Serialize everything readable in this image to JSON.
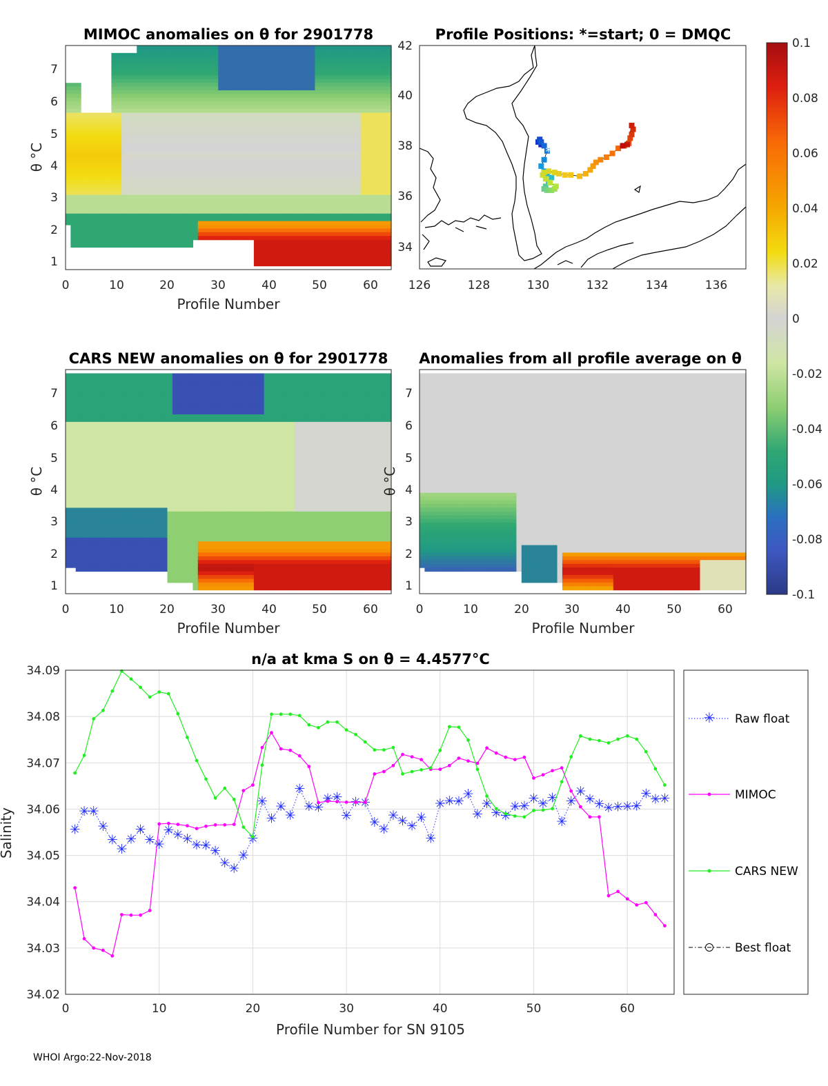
{
  "footer": "WHOI Argo:22-Nov-2018",
  "colors": {
    "raw_float": "#1f2bff",
    "mimoc": "#ff00ff",
    "cars_new": "#22ee22",
    "best_float": "#000000",
    "land": "#000000",
    "grid": "#dcdcdc"
  },
  "panels": {
    "mimoc": {
      "title": "MIMOC anomalies on θ  for 2901778",
      "xlabel": "Profile Number",
      "ylabel": "θ °C",
      "xticks": [
        "0",
        "10",
        "20",
        "30",
        "40",
        "50",
        "60"
      ],
      "yticks": [
        "1",
        "2",
        "3",
        "4",
        "5",
        "6",
        "7"
      ]
    },
    "positions": {
      "title": "Profile Positions: *=start; 0 = DMQC",
      "xticks": [
        "126",
        "128",
        "130",
        "132",
        "134",
        "136"
      ],
      "yticks": [
        "34",
        "36",
        "38",
        "40",
        "42"
      ]
    },
    "cars": {
      "title": "CARS NEW anomalies on θ for 2901778",
      "xlabel": "Profile Number",
      "ylabel": "θ °C",
      "xticks": [
        "0",
        "10",
        "20",
        "30",
        "40",
        "50",
        "60"
      ],
      "yticks": [
        "1",
        "2",
        "3",
        "4",
        "5",
        "6",
        "7"
      ]
    },
    "average": {
      "title": "Anomalies from all profile average on θ",
      "xlabel": "Profile Number",
      "ylabel": "θ °C",
      "xticks": [
        "0",
        "10",
        "20",
        "30",
        "40",
        "50",
        "60"
      ],
      "yticks": [
        "1",
        "2",
        "3",
        "4",
        "5",
        "6",
        "7"
      ]
    },
    "colorbar": {
      "ticks": [
        "0.1",
        "0.08",
        "0.06",
        "0.04",
        "0.02",
        "0",
        "-0.02",
        "-0.04",
        "-0.06",
        "-0.08",
        "-0.1"
      ]
    }
  },
  "chart_data": [
    {
      "type": "heatmap",
      "id": "mimoc_anomalies",
      "title": "MIMOC anomalies on θ  for 2901778",
      "xlabel": "Profile Number",
      "ylabel": "θ °C",
      "xlim": [
        0,
        64
      ],
      "ylim": [
        0.7,
        7.6
      ],
      "clim": [
        -0.1,
        0.1
      ]
    },
    {
      "type": "scatter",
      "id": "profile_positions",
      "title": "Profile Positions: *=start; 0 = DMQC",
      "xlim": [
        126,
        137
      ],
      "ylim": [
        33.2,
        42
      ],
      "start": [
        130.35,
        37.85
      ],
      "lon": [
        130.1,
        130.0,
        130.05,
        130.1,
        130.2,
        130.3,
        130.2,
        130.1,
        130.2,
        130.3,
        130.45,
        130.35,
        130.25,
        130.2,
        130.3,
        130.45,
        130.55,
        130.6,
        130.4,
        130.25,
        130.15,
        130.2,
        130.35,
        130.55,
        130.7,
        130.9,
        131.1,
        131.4,
        131.6,
        131.75,
        131.85,
        131.95,
        132.1,
        132.3,
        132.5,
        132.7,
        132.9,
        133.05,
        133.1,
        133.15,
        133.2,
        133.15,
        133.0,
        132.85
      ],
      "lat": [
        38.1,
        38.2,
        38.3,
        38.2,
        38.05,
        37.85,
        37.5,
        37.25,
        37.05,
        36.95,
        36.8,
        36.6,
        36.45,
        36.35,
        36.3,
        36.3,
        36.35,
        36.45,
        36.6,
        36.75,
        36.9,
        37.0,
        37.05,
        37.0,
        36.95,
        36.9,
        36.9,
        36.85,
        36.95,
        37.1,
        37.25,
        37.4,
        37.5,
        37.6,
        37.75,
        37.95,
        38.05,
        38.15,
        38.35,
        38.5,
        38.7,
        38.85,
        38.1,
        38.05
      ],
      "clim": [
        1,
        64
      ]
    },
    {
      "type": "heatmap",
      "id": "cars_anomalies",
      "title": "CARS NEW anomalies on θ for 2901778",
      "xlabel": "Profile Number",
      "ylabel": "θ °C",
      "xlim": [
        0,
        64
      ],
      "ylim": [
        0.7,
        7.6
      ],
      "clim": [
        -0.1,
        0.1
      ]
    },
    {
      "type": "heatmap",
      "id": "average_anomalies",
      "title": "Anomalies from all profile average on θ",
      "xlabel": "Profile Number",
      "ylabel": "θ °C",
      "xlim": [
        0,
        64
      ],
      "ylim": [
        0.7,
        7.6
      ],
      "clim": [
        -0.1,
        0.1
      ]
    },
    {
      "type": "line",
      "id": "salinity_on_theta",
      "title": "n/a at kma S on θ = 4.4577°C",
      "xlabel": "Profile Number for SN 9105",
      "ylabel": "Salinity",
      "xlim": [
        0,
        65
      ],
      "ylim": [
        34.02,
        34.09
      ],
      "xticks": [
        0,
        10,
        20,
        30,
        40,
        50,
        60
      ],
      "yticks": [
        34.02,
        34.03,
        34.04,
        34.05,
        34.06,
        34.07,
        34.08,
        34.09
      ],
      "ytick_labels": [
        "34.02",
        "34.03",
        "34.04",
        "34.05",
        "34.06",
        "34.07",
        "34.08",
        "34.09"
      ],
      "xtick_labels": [
        "0",
        "10",
        "20",
        "30",
        "40",
        "50",
        "60"
      ],
      "legend_position": "outside-right",
      "series": [
        {
          "name": "Raw float",
          "marker": "asterisk",
          "line": "dotted",
          "x": [
            1,
            2,
            3,
            4,
            5,
            6,
            7,
            8,
            9,
            10,
            11,
            12,
            13,
            14,
            15,
            16,
            17,
            18,
            19,
            20,
            21,
            22,
            23,
            24,
            25,
            26,
            27,
            28,
            29,
            30,
            31,
            32,
            33,
            34,
            35,
            36,
            37,
            38,
            39,
            40,
            41,
            42,
            43,
            44,
            45,
            46,
            47,
            48,
            49,
            50,
            51,
            52,
            53,
            54,
            55,
            56,
            57,
            58,
            59,
            60,
            61,
            62,
            63,
            64
          ],
          "y": [
            34.0555,
            34.0595,
            34.0595,
            34.0562,
            34.0533,
            34.0513,
            34.0534,
            34.0555,
            34.0533,
            34.0523,
            34.0554,
            34.0544,
            34.0535,
            34.0522,
            34.0521,
            34.0509,
            34.0483,
            34.0471,
            34.0499,
            34.0536,
            34.0616,
            34.0579,
            34.0605,
            34.0586,
            34.0643,
            34.0605,
            34.0603,
            34.0622,
            34.0625,
            34.0585,
            34.0615,
            34.0613,
            34.0571,
            34.0556,
            34.0586,
            34.0574,
            34.0563,
            34.0581,
            34.0536,
            34.0611,
            34.0617,
            34.0616,
            34.0632,
            34.0588,
            34.0611,
            34.0591,
            34.0585,
            34.0605,
            34.0606,
            34.0622,
            34.0611,
            34.0624,
            34.0572,
            34.0616,
            34.0638,
            34.0621,
            34.061,
            34.0602,
            34.0604,
            34.0605,
            34.0606,
            34.0633,
            34.0621,
            34.0622
          ]
        },
        {
          "name": "MIMOC",
          "marker": "dot",
          "line": "solid",
          "x": [
            1,
            2,
            3,
            4,
            5,
            6,
            7,
            8,
            9,
            10,
            11,
            12,
            13,
            14,
            15,
            16,
            17,
            18,
            19,
            20,
            21,
            22,
            23,
            24,
            25,
            26,
            27,
            28,
            29,
            30,
            31,
            32,
            33,
            34,
            35,
            36,
            37,
            38,
            39,
            40,
            41,
            42,
            43,
            44,
            45,
            46,
            47,
            48,
            49,
            50,
            51,
            52,
            53,
            54,
            55,
            56,
            57,
            58,
            59,
            60,
            61,
            62,
            63,
            64
          ],
          "y": [
            34.043,
            34.032,
            34.03,
            34.0295,
            34.0283,
            34.0372,
            34.0371,
            34.0371,
            34.0381,
            34.0568,
            34.0569,
            34.0567,
            34.0564,
            34.0558,
            34.0563,
            34.0566,
            34.0566,
            34.0567,
            34.064,
            34.0652,
            34.0733,
            34.0765,
            34.073,
            34.0727,
            34.0715,
            34.0692,
            34.0614,
            34.0617,
            34.0616,
            34.0615,
            34.0615,
            34.0615,
            34.0676,
            34.0681,
            34.0694,
            34.0718,
            34.0713,
            34.0707,
            34.0686,
            34.0686,
            34.0694,
            34.071,
            34.0704,
            34.0699,
            34.0732,
            34.0721,
            34.0712,
            34.0707,
            34.0712,
            34.0667,
            34.0674,
            34.0683,
            34.0689,
            34.0639,
            34.0605,
            34.0583,
            34.0583,
            34.0413,
            34.0422,
            34.0406,
            34.0393,
            34.0398,
            34.0372,
            34.0348
          ]
        },
        {
          "name": "CARS NEW",
          "marker": "dot",
          "line": "solid",
          "x": [
            1,
            2,
            3,
            4,
            5,
            6,
            7,
            8,
            9,
            10,
            11,
            12,
            13,
            14,
            15,
            16,
            17,
            18,
            19,
            20,
            21,
            22,
            23,
            24,
            25,
            26,
            27,
            28,
            29,
            30,
            31,
            32,
            33,
            34,
            35,
            36,
            37,
            38,
            39,
            40,
            41,
            42,
            43,
            44,
            45,
            46,
            47,
            48,
            49,
            50,
            51,
            52,
            53,
            54,
            55,
            56,
            57,
            58,
            59,
            60,
            61,
            62,
            63,
            64
          ],
          "y": [
            34.0678,
            34.0716,
            34.0795,
            34.0813,
            34.0855,
            34.0898,
            34.0881,
            34.0863,
            34.0842,
            34.0853,
            34.0849,
            34.0806,
            34.0755,
            34.0705,
            34.0665,
            34.0624,
            34.0645,
            34.0621,
            34.0561,
            34.054,
            34.0695,
            34.0805,
            34.0805,
            34.0805,
            34.0802,
            34.0782,
            34.0776,
            34.0788,
            34.0788,
            34.0771,
            34.0761,
            34.0745,
            34.0728,
            34.0728,
            34.0733,
            34.0676,
            34.0681,
            34.0685,
            34.0689,
            34.0727,
            34.0778,
            34.0777,
            34.0749,
            34.0686,
            34.0628,
            34.0601,
            34.059,
            34.0585,
            34.0583,
            34.0597,
            34.0598,
            34.0601,
            34.0659,
            34.0713,
            34.0758,
            34.0751,
            34.0748,
            34.0743,
            34.0751,
            34.0758,
            34.0751,
            34.0724,
            34.0687,
            34.0652
          ]
        },
        {
          "name": "Best float",
          "marker": "circle",
          "line": "dashdot",
          "x": [],
          "y": []
        }
      ]
    }
  ]
}
